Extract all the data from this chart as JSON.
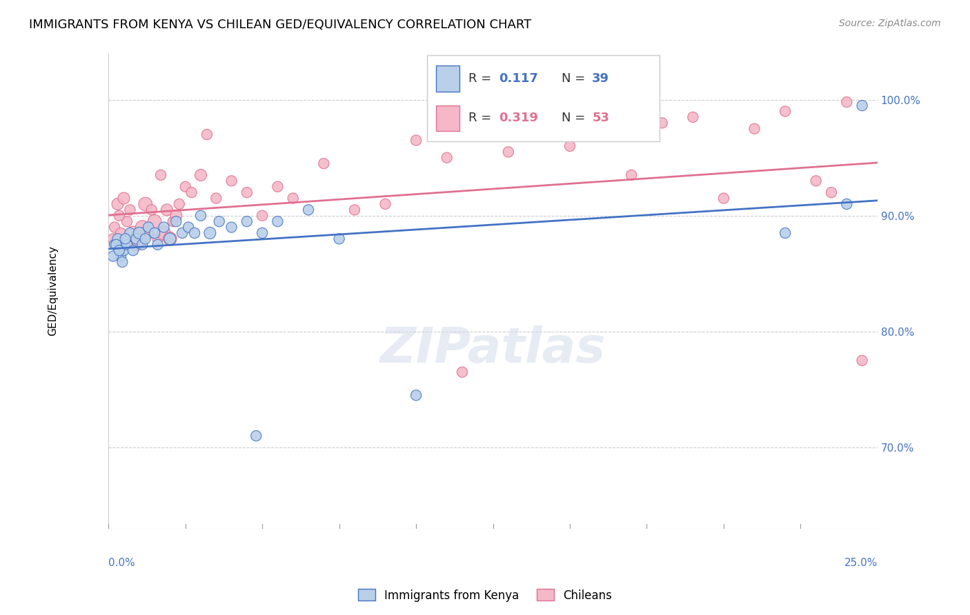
{
  "title": "IMMIGRANTS FROM KENYA VS CHILEAN GED/EQUIVALENCY CORRELATION CHART",
  "source": "Source: ZipAtlas.com",
  "ylabel": "GED/Equivalency",
  "ytick_labels": [
    "70.0%",
    "80.0%",
    "90.0%",
    "100.0%"
  ],
  "ytick_values": [
    70.0,
    80.0,
    90.0,
    100.0
  ],
  "xmin": 0.0,
  "xmax": 25.0,
  "ymin": 63.0,
  "ymax": 104.0,
  "legend_kenya_R": "0.117",
  "legend_kenya_N": "39",
  "legend_chilean_R": "0.319",
  "legend_chilean_N": "53",
  "kenya_color": "#b8d0e8",
  "chilean_color": "#f4b8c8",
  "kenya_line_color": "#4472c4",
  "chilean_line_color": "#e07090",
  "kenya_points_x": [
    0.2,
    0.3,
    0.4,
    0.5,
    0.6,
    0.7,
    0.8,
    0.9,
    1.0,
    1.1,
    1.2,
    1.3,
    1.5,
    1.6,
    1.8,
    2.0,
    2.2,
    2.4,
    2.6,
    2.8,
    3.0,
    3.3,
    3.6,
    4.0,
    4.5,
    5.0,
    5.5,
    6.5,
    7.5,
    22.0,
    24.0,
    24.5,
    0.15,
    0.25,
    0.35,
    0.45,
    0.55,
    4.8,
    10.0
  ],
  "kenya_points_y": [
    87.5,
    88.0,
    86.5,
    87.0,
    87.5,
    88.5,
    87.0,
    88.0,
    88.5,
    87.5,
    88.0,
    89.0,
    88.5,
    87.5,
    89.0,
    88.0,
    89.5,
    88.5,
    89.0,
    88.5,
    90.0,
    88.5,
    89.5,
    89.0,
    89.5,
    88.5,
    89.5,
    90.5,
    88.0,
    88.5,
    91.0,
    99.5,
    86.5,
    87.5,
    87.0,
    86.0,
    88.0,
    71.0,
    74.5
  ],
  "kenya_sizes": [
    120,
    120,
    120,
    120,
    120,
    120,
    120,
    120,
    150,
    120,
    120,
    120,
    120,
    120,
    120,
    150,
    120,
    120,
    120,
    120,
    120,
    150,
    120,
    120,
    120,
    120,
    120,
    120,
    120,
    120,
    120,
    120,
    120,
    120,
    120,
    120,
    120,
    120,
    120
  ],
  "chilean_points_x": [
    0.2,
    0.3,
    0.4,
    0.5,
    0.6,
    0.7,
    0.8,
    0.9,
    1.0,
    1.1,
    1.2,
    1.3,
    1.4,
    1.5,
    1.6,
    1.7,
    1.8,
    1.9,
    2.0,
    2.1,
    2.2,
    2.3,
    2.5,
    2.7,
    3.0,
    3.2,
    3.5,
    4.0,
    4.5,
    5.0,
    5.5,
    6.0,
    7.0,
    8.0,
    9.0,
    10.0,
    11.0,
    13.0,
    15.0,
    17.0,
    18.0,
    19.0,
    20.0,
    21.0,
    22.0,
    23.0,
    23.5,
    24.0,
    24.5,
    0.15,
    0.25,
    0.35,
    11.5
  ],
  "chilean_points_y": [
    89.0,
    91.0,
    88.5,
    91.5,
    89.5,
    90.5,
    88.5,
    87.5,
    88.0,
    89.0,
    91.0,
    88.5,
    90.5,
    89.5,
    88.0,
    93.5,
    88.5,
    90.5,
    88.0,
    89.5,
    90.0,
    91.0,
    92.5,
    92.0,
    93.5,
    97.0,
    91.5,
    93.0,
    92.0,
    90.0,
    92.5,
    91.5,
    94.5,
    90.5,
    91.0,
    96.5,
    95.0,
    95.5,
    96.0,
    93.5,
    98.0,
    98.5,
    91.5,
    97.5,
    99.0,
    93.0,
    92.0,
    99.8,
    77.5,
    88.0,
    87.5,
    90.0,
    76.5
  ],
  "chilean_sizes": [
    120,
    150,
    120,
    150,
    120,
    120,
    200,
    180,
    300,
    200,
    200,
    150,
    120,
    200,
    120,
    120,
    200,
    150,
    200,
    120,
    150,
    120,
    120,
    120,
    150,
    120,
    120,
    120,
    120,
    120,
    120,
    120,
    120,
    120,
    120,
    120,
    120,
    120,
    120,
    120,
    120,
    120,
    120,
    120,
    120,
    120,
    120,
    120,
    120,
    120,
    120,
    120,
    120
  ],
  "watermark": "ZIPatlas",
  "title_fontsize": 13,
  "axis_label_color": "#4472c4"
}
